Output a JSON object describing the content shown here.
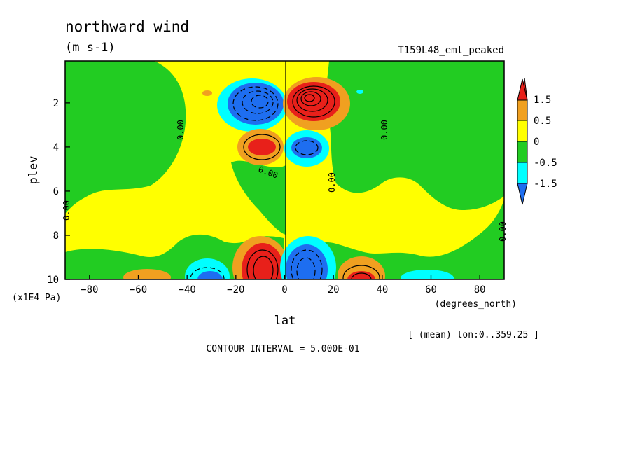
{
  "chart_data": {
    "type": "heatmap",
    "title": "northward wind",
    "units": "(m s-1)",
    "run_label": "T159L48_eml_peaked",
    "xlabel": "lat",
    "x_units": "(degrees_north)",
    "ylabel": "plev",
    "y_units": "(x1E4 Pa)",
    "xlim": [
      -90,
      90
    ],
    "ylim": [
      0.1,
      10
    ],
    "y_inverted": true,
    "x_ticks": [
      -80,
      -60,
      -40,
      -20,
      0,
      20,
      40,
      60,
      80
    ],
    "y_ticks": [
      2,
      4,
      6,
      8,
      10
    ],
    "mean_note": "[ (mean) lon:0..359.25 ]",
    "contour_interval_note": "CONTOUR INTERVAL = 5.000E-01",
    "zero_contour_label": "0.00",
    "colorbar": {
      "labels": [
        "1.5",
        "0.5",
        "0",
        "-0.5",
        "-1.5"
      ],
      "colors": [
        "#e8201a",
        "#f0a020",
        "#ffff00",
        "#22cc22",
        "#00ffff",
        "#1e6ef0"
      ]
    },
    "features": [
      {
        "lat": -7,
        "plev": 2.0,
        "value": -2.5
      },
      {
        "lat": 7,
        "plev": 2.0,
        "value": 3.0
      },
      {
        "lat": -7,
        "plev": 3.9,
        "value": 1.8
      },
      {
        "lat": 7,
        "plev": 4.0,
        "value": -1.5
      },
      {
        "lat": -7,
        "plev": 9.4,
        "value": 3.0
      },
      {
        "lat": 7,
        "plev": 9.4,
        "value": -2.5
      },
      {
        "lat": -32,
        "plev": 9.8,
        "value": -1.8
      },
      {
        "lat": 32,
        "plev": 9.8,
        "value": 2.0
      },
      {
        "lat": -58,
        "plev": 9.9,
        "value": 0.6
      },
      {
        "lat": 58,
        "plev": 9.9,
        "value": -0.6
      }
    ]
  }
}
